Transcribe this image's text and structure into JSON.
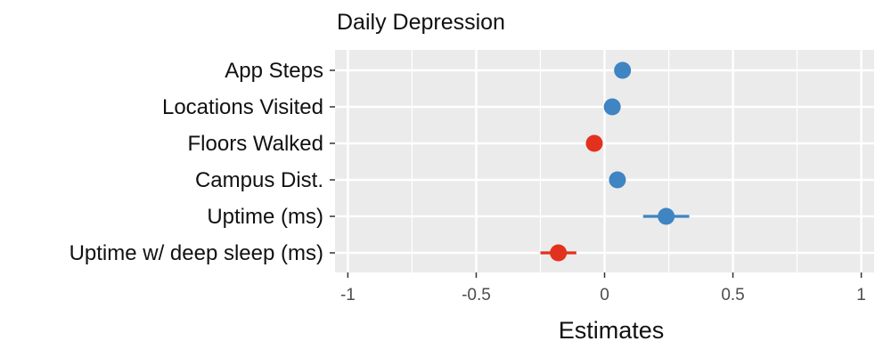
{
  "chart_data": {
    "type": "scatter",
    "title": "Daily Depression",
    "xlabel": "Estimates",
    "ylabel": "",
    "xlim": [
      -1.05,
      1.05
    ],
    "x_ticks": [
      -1,
      -0.5,
      0,
      0.5,
      1
    ],
    "x_tick_labels": [
      "-1",
      "-0.5",
      "0",
      "0.5",
      "1"
    ],
    "grid": true,
    "legend": "none",
    "colors": {
      "positive": "#3F84C3",
      "negative": "#E2321E",
      "panel": "#EBEBEB",
      "grid": "#FFFFFF"
    },
    "categories": [
      "App Steps",
      "Locations Visited",
      "Floors Walked",
      "Campus Dist.",
      "Uptime (ms)",
      "Uptime w/ deep sleep (ms)"
    ],
    "estimates": [
      0.07,
      0.03,
      -0.04,
      0.05,
      0.24,
      -0.18
    ],
    "ci_low": [
      0.07,
      0.03,
      -0.04,
      0.05,
      0.15,
      -0.25
    ],
    "ci_high": [
      0.07,
      0.03,
      -0.04,
      0.05,
      0.33,
      -0.11
    ],
    "signs": [
      "positive",
      "positive",
      "negative",
      "positive",
      "positive",
      "negative"
    ]
  }
}
